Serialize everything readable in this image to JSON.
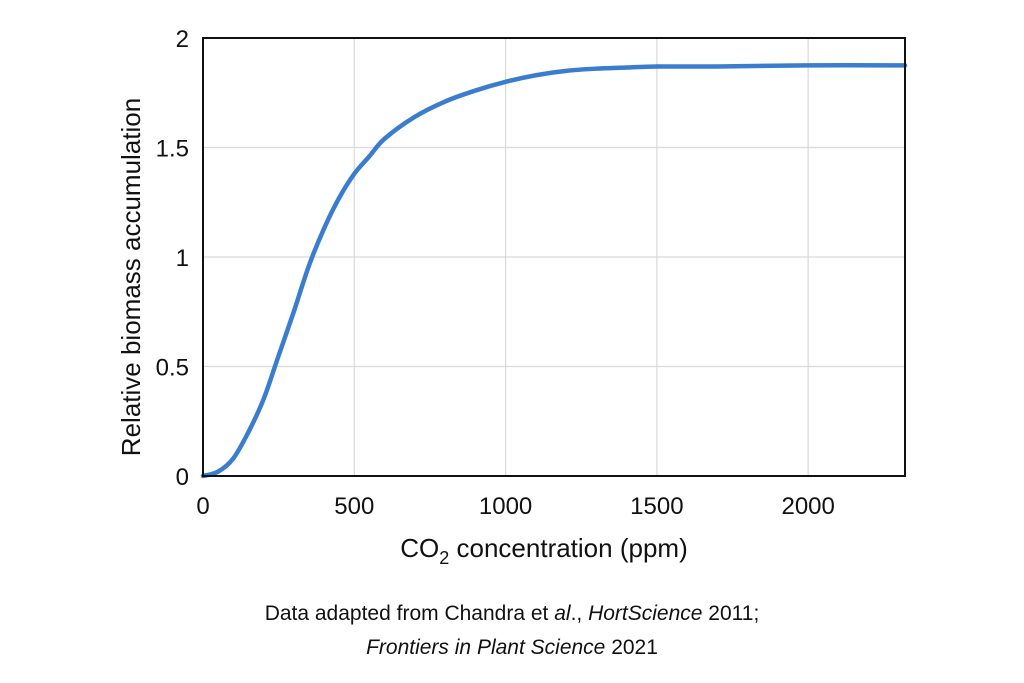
{
  "chart_data": {
    "type": "line",
    "title": "",
    "xlabel": "CO",
    "xlabel_subscript": "2",
    "xlabel_suffix": " concentration (ppm)",
    "ylabel": "Relative biomass accumulation",
    "xlim": [
      0,
      2320
    ],
    "ylim": [
      0,
      2
    ],
    "xticks": [
      0,
      500,
      1000,
      1500,
      2000
    ],
    "xtick_labels": [
      "0",
      "500",
      "1000",
      "1500",
      "2000"
    ],
    "yticks": [
      0,
      0.5,
      1,
      1.5,
      2
    ],
    "ytick_labels": [
      "0",
      "0.5",
      "1",
      "1.5",
      "2"
    ],
    "grid": true,
    "legend": "none",
    "series": [
      {
        "color": "#3a7dcf",
        "x": [
          0,
          50,
          100,
          150,
          200,
          250,
          300,
          350,
          400,
          450,
          500,
          550,
          600,
          700,
          800,
          900,
          1000,
          1100,
          1200,
          1300,
          1400,
          1500,
          1700,
          2000,
          2320
        ],
        "y": [
          0,
          0.02,
          0.08,
          0.2,
          0.35,
          0.55,
          0.75,
          0.96,
          1.13,
          1.27,
          1.38,
          1.46,
          1.54,
          1.64,
          1.71,
          1.76,
          1.8,
          1.83,
          1.85,
          1.86,
          1.865,
          1.87,
          1.87,
          1.875,
          1.875
        ]
      }
    ]
  },
  "caption": {
    "line1_pre": "Data adapted from Chandra et ",
    "line1_em1": "al",
    "line1_mid": "., ",
    "line1_em2": "HortScience",
    "line1_post": " 2011;",
    "line2_em": "Frontiers in Plant Science",
    "line2_post": " 2021"
  }
}
